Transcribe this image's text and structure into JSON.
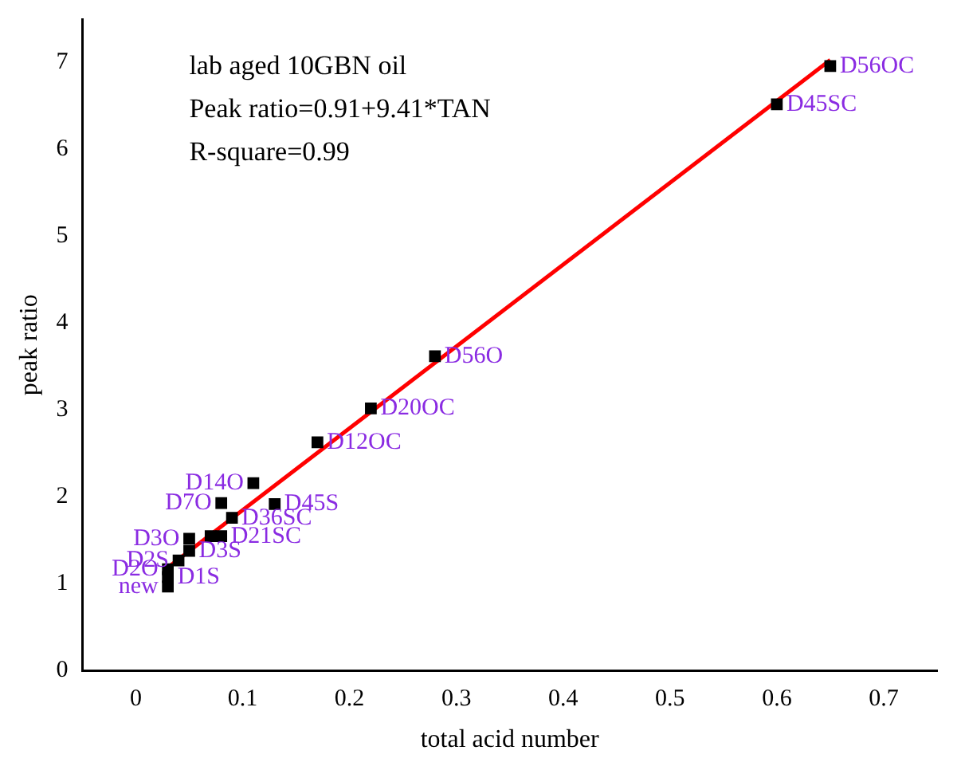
{
  "chart_data": {
    "type": "scatter",
    "xlabel": "total acid number",
    "ylabel": "peak ratio",
    "xlim": [
      -0.05,
      0.75
    ],
    "xticks": [
      0,
      0.1,
      0.2,
      0.3,
      0.4,
      0.5,
      0.6,
      0.7
    ],
    "ylim": [
      0,
      7.5
    ],
    "yticks": [
      0,
      1,
      2,
      3,
      4,
      5,
      6,
      7
    ],
    "grid": false,
    "legend": false,
    "marker": "square",
    "series": [
      {
        "color": "#000000",
        "x": [
          0.03,
          0.03,
          0.03,
          0.04,
          0.05,
          0.05,
          0.07,
          0.08,
          0.09,
          0.08,
          0.13,
          0.11,
          0.17,
          0.22,
          0.28,
          0.6,
          0.65
        ],
        "values": [
          0.97,
          1.08,
          1.17,
          1.27,
          1.38,
          1.52,
          1.55,
          1.55,
          1.76,
          1.93,
          1.92,
          2.16,
          2.63,
          3.02,
          3.62,
          6.52,
          6.96
        ]
      },
      {
        "type": "line",
        "color": "#ff0000",
        "marker": "none",
        "line_style": "solid",
        "x": [
          0.03,
          0.65
        ],
        "values": [
          1.19,
          7.03
        ]
      }
    ],
    "annotations": [
      "lab aged 10GBN oil",
      "Peak ratio=0.91+9.41*TAN",
      "R-square=0.99",
      {
        "text": "new",
        "x": 0.03,
        "y": 0.97
      },
      {
        "text": "D1S",
        "x": 0.03,
        "y": 1.08
      },
      {
        "text": "D2O",
        "x": 0.03,
        "y": 1.17
      },
      {
        "text": "D2S",
        "x": 0.04,
        "y": 1.27
      },
      {
        "text": "D3S",
        "x": 0.05,
        "y": 1.38
      },
      {
        "text": "D3O",
        "x": 0.05,
        "y": 1.52
      },
      {
        "text": "D21SC",
        "x": 0.08,
        "y": 1.55
      },
      {
        "text": "D36SC",
        "x": 0.09,
        "y": 1.76
      },
      {
        "text": "D7O",
        "x": 0.08,
        "y": 1.93
      },
      {
        "text": "D45S",
        "x": 0.13,
        "y": 1.92
      },
      {
        "text": "D14O",
        "x": 0.11,
        "y": 2.16
      },
      {
        "text": "D12OC",
        "x": 0.17,
        "y": 2.63
      },
      {
        "text": "D20OC",
        "x": 0.22,
        "y": 3.02
      },
      {
        "text": "D56O",
        "x": 0.28,
        "y": 3.62
      },
      {
        "text": "D45SC",
        "x": 0.6,
        "y": 6.52
      },
      {
        "text": "D56OC",
        "x": 0.65,
        "y": 6.96
      }
    ]
  }
}
